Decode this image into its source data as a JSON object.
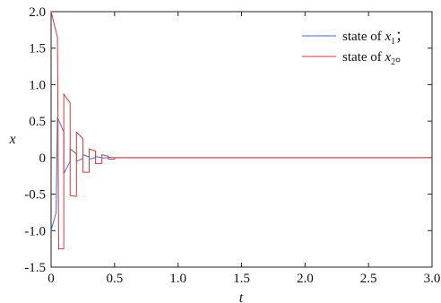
{
  "chart_data": {
    "type": "line",
    "xlabel": "t",
    "ylabel": "x",
    "xlim": [
      0,
      3.0
    ],
    "ylim": [
      -1.5,
      2.0
    ],
    "grid": false,
    "legend_position": "top-right",
    "x_ticks": [
      "0",
      "0.5",
      "1.0",
      "1.5",
      "2.0",
      "2.5",
      "3.0"
    ],
    "y_ticks": [
      "-1.5",
      "-1.0",
      "-0.5",
      "0",
      "0.5",
      "1.0",
      "1.5",
      "2.0"
    ],
    "colors": {
      "x1": "#3a6fc4",
      "x2": "#d63a3a"
    },
    "legend": [
      {
        "prefix": "state of ",
        "var": "x",
        "sub": "1",
        "suffix": "；",
        "series": "x1"
      },
      {
        "prefix": "state of ",
        "var": "x",
        "sub": "2",
        "suffix": "。",
        "series": "x2"
      }
    ],
    "series": [
      {
        "key": "x1",
        "x": [
          0,
          0.04,
          0.05,
          0.1,
          0.1,
          0.15,
          0.15,
          0.2,
          0.2,
          0.25,
          0.25,
          0.3,
          0.3,
          0.35,
          0.35,
          0.4,
          0.4,
          0.45,
          0.45,
          0.5,
          0.5,
          3.0
        ],
        "y": [
          -1.0,
          -0.75,
          0.55,
          0.35,
          -0.22,
          -0.05,
          0.12,
          0.05,
          -0.05,
          -0.01,
          0.04,
          0.01,
          -0.02,
          0.0,
          0.015,
          0.0,
          -0.005,
          0.0,
          0.005,
          0.0,
          0.0,
          0.0
        ]
      },
      {
        "key": "x2",
        "x": [
          0,
          0.05,
          0.06,
          0.1,
          0.1,
          0.15,
          0.15,
          0.2,
          0.2,
          0.25,
          0.25,
          0.3,
          0.3,
          0.35,
          0.35,
          0.4,
          0.4,
          0.45,
          0.45,
          0.5,
          0.5,
          3.0
        ],
        "y": [
          2.0,
          1.65,
          -1.25,
          -1.25,
          0.87,
          0.75,
          -0.52,
          -0.53,
          0.35,
          0.26,
          -0.2,
          -0.2,
          0.12,
          0.09,
          -0.08,
          -0.08,
          0.04,
          0.02,
          -0.02,
          -0.02,
          0.0,
          0.0
        ]
      }
    ]
  }
}
